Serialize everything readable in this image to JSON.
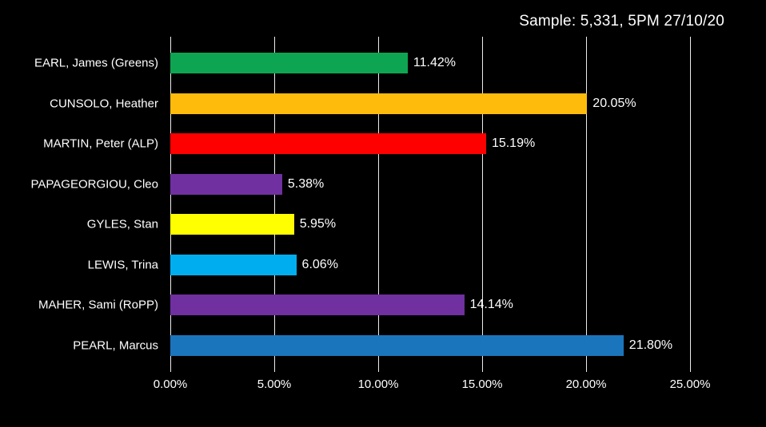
{
  "title": "Sample: 5,331, 5PM 27/10/20",
  "colors": {
    "background": "#000000",
    "gridline": "#ECECEC",
    "text": "#FFFFFF"
  },
  "chart_data": {
    "type": "bar",
    "orientation": "horizontal",
    "title": "Sample: 5,331, 5PM 27/10/20",
    "categories": [
      "EARL, James (Greens)",
      "CUNSOLO, Heather",
      "MARTIN, Peter (ALP)",
      "PAPAGEORGIOU, Cleo",
      "GYLES, Stan",
      "LEWIS, Trina",
      "MAHER, Sami (RoPP)",
      "PEARL, Marcus"
    ],
    "values": [
      11.42,
      20.05,
      15.19,
      5.38,
      5.95,
      6.06,
      14.14,
      21.8
    ],
    "value_labels": [
      "11.42%",
      "20.05%",
      "15.19%",
      "5.38%",
      "5.95%",
      "6.06%",
      "14.14%",
      "21.80%"
    ],
    "bar_colors": [
      "#0EA552",
      "#FFBB0C",
      "#FF0000",
      "#70309F",
      "#FFFF00",
      "#00AEEF",
      "#70309F",
      "#1B75BC"
    ],
    "xlabel": "",
    "ylabel": "",
    "xlim": [
      0,
      25
    ],
    "x_tick_values": [
      0,
      5,
      10,
      15,
      20,
      25
    ],
    "x_tick_labels": [
      "0.00%",
      "5.00%",
      "10.00%",
      "15.00%",
      "20.00%",
      "25.00%"
    ],
    "grid": true,
    "legend": false
  }
}
